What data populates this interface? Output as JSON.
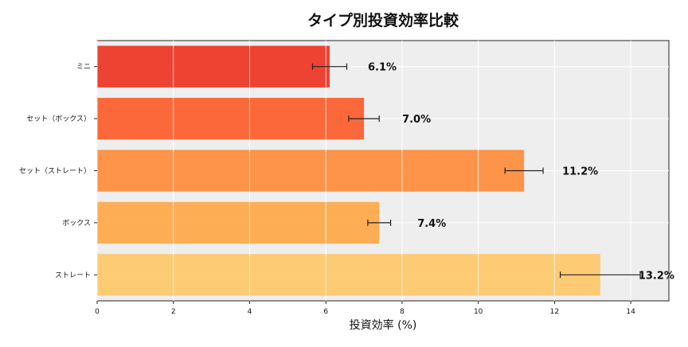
{
  "chart_data": {
    "type": "bar",
    "orientation": "horizontal",
    "title": "タイプ別投資効率比較",
    "xlabel": "投資効率 (%)",
    "ylabel": "",
    "xlim": [
      0,
      15
    ],
    "xticks": [
      0,
      2,
      4,
      6,
      8,
      10,
      12,
      14
    ],
    "grid": true,
    "categories": [
      "ミニ",
      "セット（ボックス）",
      "セット（ストレート）",
      "ボックス",
      "ストレート"
    ],
    "values": [
      6.1,
      7.0,
      11.2,
      7.4,
      13.2
    ],
    "errors": [
      0.45,
      0.4,
      0.5,
      0.3,
      1.05
    ],
    "value_labels": [
      "6.1%",
      "7.0%",
      "11.2%",
      "7.4%",
      "13.2%"
    ],
    "bar_colors": [
      "#ee3322",
      "#fe5c2a",
      "#fe8c3c",
      "#fea848",
      "#fec868"
    ],
    "plot_background": "#eeeeee"
  }
}
